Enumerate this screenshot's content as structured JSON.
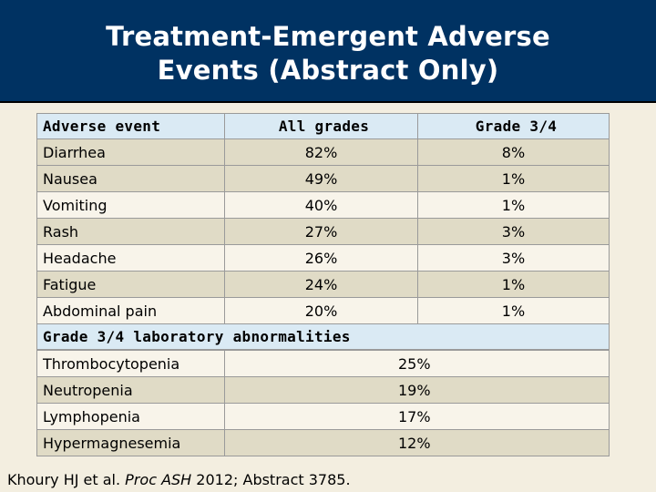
{
  "title": {
    "line1": "Treatment-Emergent Adverse",
    "line2": "Events (Abstract Only)"
  },
  "table": {
    "headers": [
      "Adverse event",
      "All grades",
      "Grade 3/4"
    ],
    "rows": [
      {
        "event": "Diarrhea",
        "all": "82%",
        "g34": "8%"
      },
      {
        "event": "Nausea",
        "all": "49%",
        "g34": "1%"
      },
      {
        "event": "Vomiting",
        "all": "40%",
        "g34": "1%"
      },
      {
        "event": "Rash",
        "all": "27%",
        "g34": "3%"
      },
      {
        "event": "Headache",
        "all": "26%",
        "g34": "3%"
      },
      {
        "event": "Fatigue",
        "all": "24%",
        "g34": "1%"
      },
      {
        "event": "Abdominal pain",
        "all": "20%",
        "g34": "1%"
      }
    ],
    "lab_header": "Grade 3/4 laboratory abnormalities",
    "lab_rows": [
      {
        "name": "Thrombocytopenia",
        "value": "25%"
      },
      {
        "name": "Neutropenia",
        "value": "19%"
      },
      {
        "name": "Lymphopenia",
        "value": "17%"
      },
      {
        "name": "Hypermagnesemia",
        "value": "12%"
      }
    ]
  },
  "citation": {
    "authors": "Khoury HJ et al.",
    "journal": "Proc ASH",
    "rest": "2012; Abstract 3785."
  }
}
